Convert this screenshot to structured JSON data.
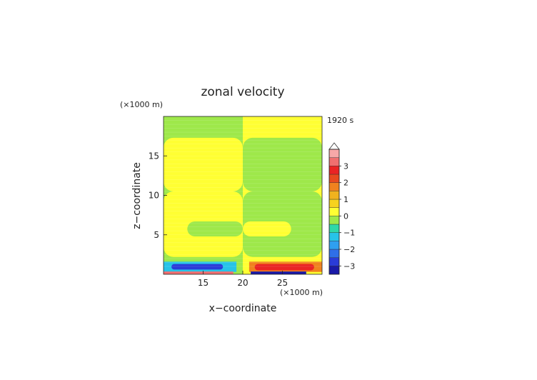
{
  "chart_data": {
    "type": "heatmap",
    "title": "zonal velocity",
    "xlabel": "x−coordinate",
    "ylabel": "z−coordinate",
    "x_unit_label": "(×1000 m)",
    "y_unit_label": "(×1000 m)",
    "time_label": "1920 s",
    "xlim": [
      10,
      30
    ],
    "ylim": [
      0,
      20
    ],
    "x_ticks": [
      15,
      20,
      25
    ],
    "x_tick_labels": [
      "15",
      "20",
      "25"
    ],
    "y_ticks": [
      5,
      10,
      15
    ],
    "y_tick_labels": [
      "5",
      "10",
      "15"
    ],
    "colorbar": {
      "tick_values": [
        -3,
        -2,
        -1,
        0,
        1,
        2,
        3
      ],
      "tick_labels": [
        "−3",
        "−2",
        "−1",
        "0",
        "1",
        "2",
        "3"
      ],
      "levels": [
        {
          "min": -3.5,
          "max": -3.0,
          "color": "#1a1aa8"
        },
        {
          "min": -3.0,
          "max": -2.5,
          "color": "#2a3bd8"
        },
        {
          "min": -2.5,
          "max": -2.0,
          "color": "#2f6fe8"
        },
        {
          "min": -2.0,
          "max": -1.5,
          "color": "#2f9ff0"
        },
        {
          "min": -1.5,
          "max": -1.0,
          "color": "#27c3e8"
        },
        {
          "min": -1.0,
          "max": -0.5,
          "color": "#2fd8a8"
        },
        {
          "min": -0.5,
          "max": 0.0,
          "color": "#9ee84a"
        },
        {
          "min": 0.0,
          "max": 0.5,
          "color": "#ffff33"
        },
        {
          "min": 0.5,
          "max": 1.0,
          "color": "#f7d21e"
        },
        {
          "min": 1.0,
          "max": 1.5,
          "color": "#f0b21e"
        },
        {
          "min": 1.5,
          "max": 2.0,
          "color": "#f0821e"
        },
        {
          "min": 2.0,
          "max": 2.5,
          "color": "#e84a1e"
        },
        {
          "min": 2.5,
          "max": 3.0,
          "color": "#ea2424"
        },
        {
          "min": 3.0,
          "max": 3.5,
          "color": "#f07070"
        },
        {
          "min": 3.5,
          "max": 4.0,
          "color": "#f7a8a8"
        }
      ]
    },
    "regions": [
      {
        "desc": "background left half",
        "x": [
          10,
          20
        ],
        "z": [
          0,
          20
        ],
        "value": -0.25
      },
      {
        "desc": "background right half",
        "x": [
          20,
          30
        ],
        "z": [
          0,
          20
        ],
        "value": 0.25
      },
      {
        "desc": "upper band left",
        "x": [
          10,
          20
        ],
        "z": [
          10.5,
          17.3
        ],
        "value": 0.25
      },
      {
        "desc": "upper band right",
        "x": [
          20,
          30
        ],
        "z": [
          10.5,
          17.3
        ],
        "value": -0.25
      },
      {
        "desc": "lower band left",
        "x": [
          10,
          20
        ],
        "z": [
          2.2,
          10.5
        ],
        "value": 0.25
      },
      {
        "desc": "lower band right",
        "x": [
          20,
          30
        ],
        "z": [
          2.2,
          10.5
        ],
        "value": -0.25
      },
      {
        "desc": "mid lobe left",
        "x": [
          13,
          20
        ],
        "z": [
          4.8,
          6.7
        ],
        "value": -0.25
      },
      {
        "desc": "mid lobe right",
        "x": [
          20,
          26.1
        ],
        "z": [
          4.8,
          6.7
        ],
        "value": 0.25
      },
      {
        "desc": "near-surface left",
        "x": [
          10,
          19.2
        ],
        "z": [
          0.3,
          1.6
        ],
        "value": -1.5
      },
      {
        "desc": "near-surface left core",
        "x": [
          11,
          17.5
        ],
        "z": [
          0.6,
          1.3
        ],
        "value": -2.8
      },
      {
        "desc": "near-surface right",
        "x": [
          20.8,
          30
        ],
        "z": [
          0.3,
          1.6
        ],
        "value": 1.5
      },
      {
        "desc": "near-surface right core",
        "x": [
          21.5,
          29
        ],
        "z": [
          0.5,
          1.3
        ],
        "value": 2.5
      },
      {
        "desc": "surface left",
        "x": [
          10,
          18.8
        ],
        "z": [
          0.0,
          0.35
        ],
        "value": 3.2
      },
      {
        "desc": "surface right",
        "x": [
          21,
          28
        ],
        "z": [
          0.0,
          0.35
        ],
        "value": -3.2
      }
    ]
  }
}
